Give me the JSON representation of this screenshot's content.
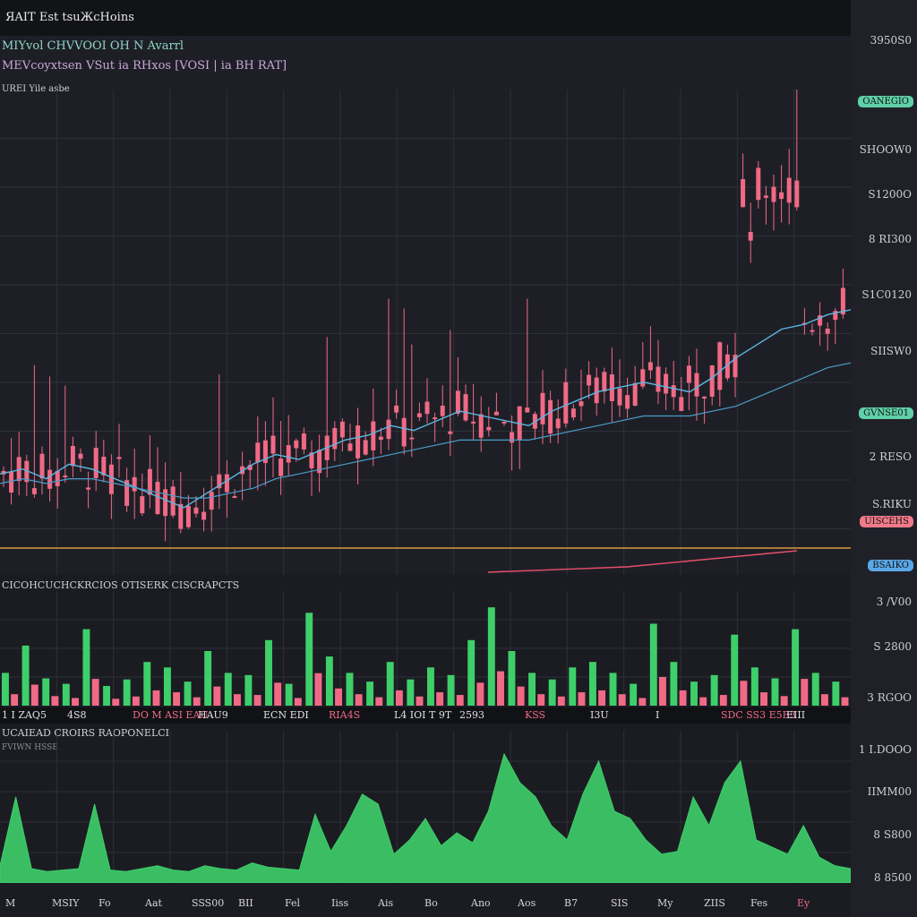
{
  "header": {
    "title": "ЯAIT  Est tsuЖcHoins"
  },
  "legend": {
    "line1": "MIYvol CHVVOOI OH N Avarrl",
    "line2": "MEVcoyxtsen VSut  ia RHxos [VOSI | ia BH  RAT]",
    "line3": "UREI Yile asbe"
  },
  "colors": {
    "up": "#3ecf6a",
    "down": "#f06a86",
    "ma_fast": "#5ab8e0",
    "ma_slow": "#4a9cc8",
    "baseline": "#d89a3a",
    "trend": "#e8506a",
    "grid": "#2e3038",
    "bg": "#1e1f26"
  },
  "price_axis": {
    "ticks": [
      "3950S0",
      "SHOOW0",
      "S1200O",
      "8 RI300",
      "S1C0120",
      "SIISW0",
      "2 RESO",
      "S.RIKU"
    ],
    "badges": [
      {
        "label": "OANEGIO",
        "color": "#5fd0a8"
      },
      {
        "label": "GVNSE01",
        "color": "#5fd0a8"
      },
      {
        "label": "UISCEHS",
        "color": "#f07a88"
      },
      {
        "label": "BSAIKO",
        "color": "#5aa8e8"
      }
    ]
  },
  "volume_panel": {
    "title": "CICOHCUCHCKRCIOS OTISERK        CISCRAPCTS",
    "ticks": [
      "3 /V00",
      "S 2800",
      "3 RGOO"
    ],
    "labels": [
      "1 I  ZAQ5",
      "4S8",
      "DO  M ASI  EAU",
      "HAU9",
      "ECN  EDI",
      "RIA4S",
      "L4 IOI  T  9T",
      "2593",
      "KSS",
      "I3U",
      "I",
      "SDC  SS3  E5E3",
      "EIII"
    ]
  },
  "lower_panel": {
    "title": "UCAIEAD CROIRS RAOPONELCI",
    "subtitle": "FVIWN  HSSE",
    "ticks": [
      "1 I.DOOO",
      "IIMM00",
      "8 S800",
      "8 8500"
    ],
    "x_labels": [
      "M",
      "MSIY",
      "Fo",
      "Aat",
      "SSS00",
      "BII",
      "Fel",
      "Iiss",
      "Ais",
      "Bo",
      "Ano",
      "Aos",
      "B7",
      "SIS",
      "My",
      "ZIIS",
      "Fes",
      "Ey"
    ]
  },
  "chart_data": [
    {
      "type": "line",
      "series": [
        {
          "values": [
            100,
            101,
            99,
            102,
            101,
            99,
            97,
            95,
            93,
            96,
            99,
            102,
            104,
            103,
            105,
            107,
            108,
            110,
            109,
            111,
            113,
            112,
            111,
            110,
            113,
            115,
            117,
            118,
            119,
            118,
            117,
            120,
            124,
            127,
            130,
            131,
            133,
            134
          ]
        },
        {
          "values": [
            98,
            99,
            98,
            99,
            99,
            98,
            97,
            96,
            95,
            95,
            96,
            97,
            99,
            100,
            101,
            102,
            103,
            104,
            105,
            106,
            107,
            107,
            107,
            107,
            108,
            109,
            110,
            111,
            112,
            112,
            112,
            113,
            114,
            116,
            118,
            120,
            122,
            123
          ]
        }
      ]
    },
    {
      "type": "bar",
      "series": [
        {
          "values": [
            30,
            55,
            25,
            20,
            70,
            18,
            24,
            40,
            35,
            22,
            50,
            30,
            28,
            60,
            20,
            85,
            45,
            30,
            22,
            40,
            24,
            35,
            28,
            60,
            90,
            50,
            30,
            24,
            35,
            40,
            30,
            20,
            75,
            40,
            22,
            28,
            65,
            35,
            25,
            70,
            30,
            22
          ]
        }
      ]
    },
    {
      "type": "area",
      "series": [
        {
          "values": [
            12,
            60,
            10,
            8,
            9,
            10,
            55,
            9,
            8,
            10,
            12,
            9,
            8,
            12,
            10,
            9,
            14,
            11,
            10,
            9,
            48,
            22,
            40,
            62,
            55,
            20,
            30,
            45,
            26,
            35,
            28,
            50,
            90,
            70,
            60,
            40,
            30,
            62,
            85,
            50,
            45,
            30,
            20,
            22,
            60,
            40,
            70,
            85,
            30,
            25,
            20,
            40,
            18,
            12,
            10
          ]
        }
      ]
    }
  ]
}
